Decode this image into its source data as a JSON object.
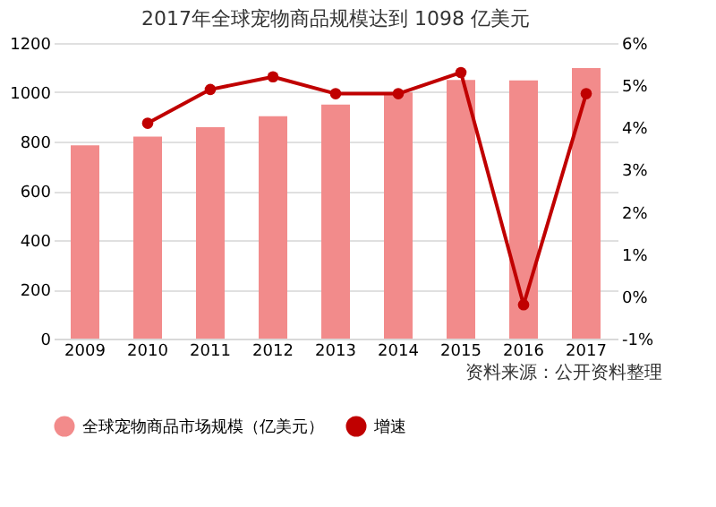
{
  "chart_data": {
    "type": "bar",
    "title": "2017年全球宠物商品规模达到 1098 亿美元",
    "categories": [
      "2009",
      "2010",
      "2011",
      "2012",
      "2013",
      "2014",
      "2015",
      "2016",
      "2017"
    ],
    "series": [
      {
        "name": "全球宠物商品市场规模（亿美元）",
        "color": "#f28b8b",
        "values": [
          785,
          820,
          858,
          903,
          950,
          1000,
          1050,
          1048,
          1098
        ]
      },
      {
        "name": "增速",
        "type": "line",
        "axis": "y2",
        "color": "#c00000",
        "marker": "circle",
        "values": [
          null,
          4.1,
          4.9,
          5.2,
          4.8,
          4.8,
          5.3,
          -0.2,
          4.8
        ]
      }
    ],
    "ylim": [
      0,
      1200
    ],
    "yticks": [
      0,
      200,
      400,
      600,
      800,
      1000,
      1200
    ],
    "y2lim": [
      -1,
      6
    ],
    "y2ticks": [
      {
        "value": -1,
        "label": "-1%"
      },
      {
        "value": 0,
        "label": "0%"
      },
      {
        "value": 1,
        "label": "1%"
      },
      {
        "value": 2,
        "label": "2%"
      },
      {
        "value": 3,
        "label": "3%"
      },
      {
        "value": 4,
        "label": "4%"
      },
      {
        "value": 5,
        "label": "5%"
      },
      {
        "value": 6,
        "label": "6%"
      }
    ],
    "grid": "y",
    "legend": "bottom",
    "annotations": [
      "资料来源：公开资料整理"
    ]
  }
}
